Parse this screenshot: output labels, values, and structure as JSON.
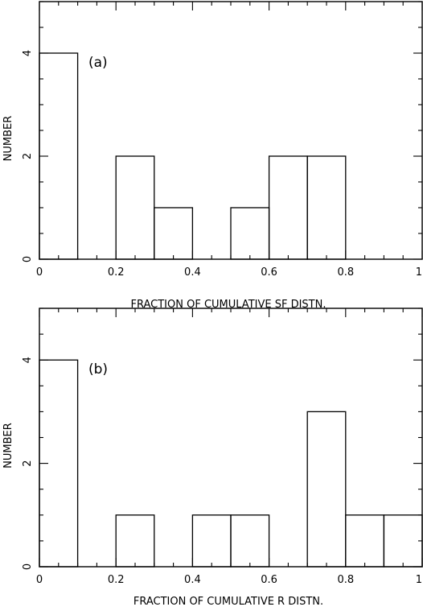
{
  "chart_data": [
    {
      "type": "bar",
      "panel_label": "(a)",
      "xlabel": "FRACTION OF CUMULATIVE SF DISTN.",
      "ylabel": "NUMBER",
      "xlim": [
        0,
        1
      ],
      "ylim": [
        0,
        5
      ],
      "xticks": [
        "0",
        "0.2",
        "0.4",
        "0.6",
        "0.8",
        "1"
      ],
      "yticks": [
        "0",
        "2",
        "4"
      ],
      "bin_edges": [
        0,
        0.1,
        0.2,
        0.3,
        0.4,
        0.5,
        0.6,
        0.7,
        0.8,
        0.9,
        1.0
      ],
      "values": [
        4,
        0,
        2,
        1,
        0,
        1,
        2,
        2,
        0,
        0
      ]
    },
    {
      "type": "bar",
      "panel_label": "(b)",
      "xlabel": "FRACTION OF CUMULATIVE R DISTN.",
      "ylabel": "NUMBER",
      "xlim": [
        0,
        1
      ],
      "ylim": [
        0,
        5
      ],
      "xticks": [
        "0",
        "0.2",
        "0.4",
        "0.6",
        "0.8",
        "1"
      ],
      "yticks": [
        "0",
        "2",
        "4"
      ],
      "bin_edges": [
        0,
        0.1,
        0.2,
        0.3,
        0.4,
        0.5,
        0.6,
        0.7,
        0.8,
        0.9,
        1.0
      ],
      "values": [
        4,
        0,
        1,
        0,
        1,
        1,
        0,
        3,
        1,
        1
      ]
    }
  ]
}
